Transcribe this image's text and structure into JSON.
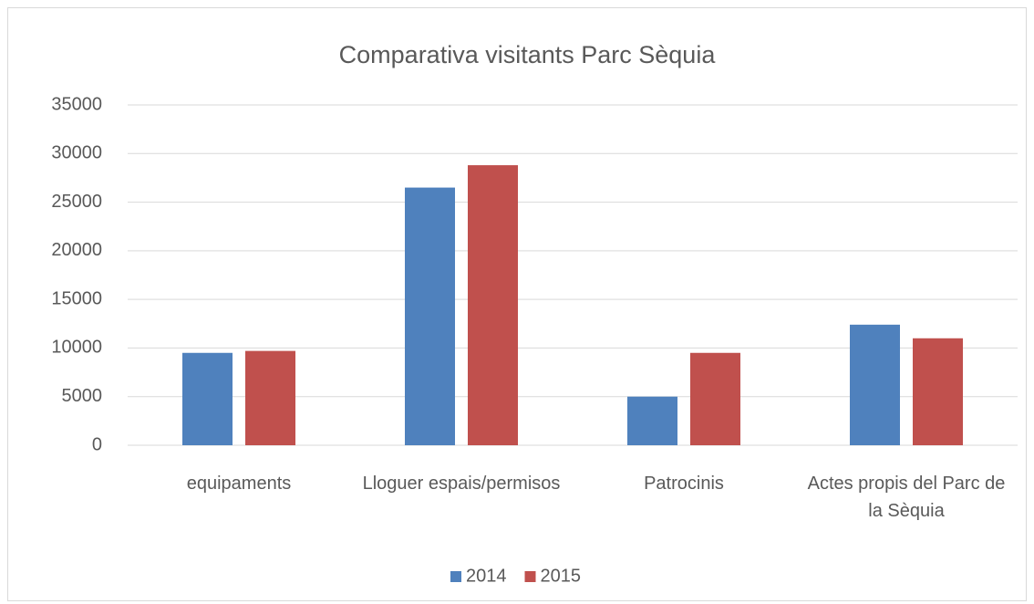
{
  "chart_data": {
    "type": "bar",
    "title": "Comparativa visitants Parc Sèquia",
    "categories": [
      "equipaments",
      "Lloguer espais/permisos",
      "Patrocinis",
      "Actes propis del Parc de la Sèquia"
    ],
    "series": [
      {
        "name": "2014",
        "color": "#4f81bd",
        "values": [
          9500,
          26500,
          5000,
          12400
        ]
      },
      {
        "name": "2015",
        "color": "#c0504d",
        "values": [
          9700,
          28800,
          9500,
          11000
        ]
      }
    ],
    "ylim": [
      0,
      35000
    ],
    "yticks": [
      0,
      5000,
      10000,
      15000,
      20000,
      25000,
      30000,
      35000
    ],
    "grid": true,
    "legend": "bottom"
  }
}
